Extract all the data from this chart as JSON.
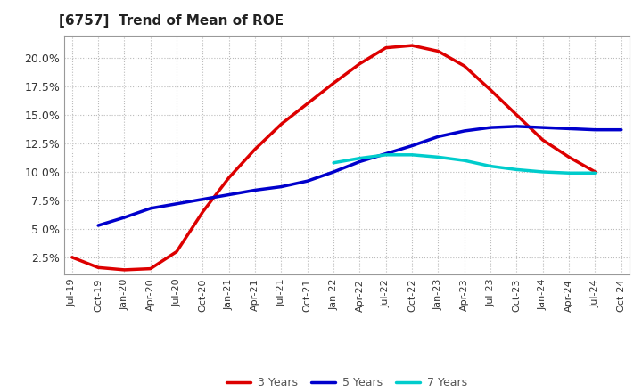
{
  "title": "[6757]  Trend of Mean of ROE",
  "title_fontsize": 11,
  "background_color": "#ffffff",
  "grid_color": "#bbbbbb",
  "x_tick_labels": [
    "Jul-19",
    "Oct-19",
    "Jan-20",
    "Apr-20",
    "Jul-20",
    "Oct-20",
    "Jan-21",
    "Apr-21",
    "Jul-21",
    "Oct-21",
    "Jan-22",
    "Apr-22",
    "Jul-22",
    "Oct-22",
    "Jan-23",
    "Apr-23",
    "Jul-23",
    "Oct-23",
    "Jan-24",
    "Apr-24",
    "Jul-24",
    "Oct-24"
  ],
  "series": {
    "3 Years": {
      "color": "#dd0000",
      "values": [
        2.5,
        1.6,
        1.4,
        1.5,
        3.0,
        6.5,
        9.5,
        12.0,
        14.2,
        16.0,
        17.8,
        19.5,
        20.9,
        21.1,
        20.6,
        19.3,
        17.2,
        15.0,
        12.8,
        11.3,
        10.0,
        null
      ]
    },
    "5 Years": {
      "color": "#0000cc",
      "values": [
        null,
        5.3,
        6.0,
        6.8,
        7.2,
        7.6,
        8.0,
        8.4,
        8.7,
        9.2,
        10.0,
        10.9,
        11.6,
        12.3,
        13.1,
        13.6,
        13.9,
        14.0,
        13.9,
        13.8,
        13.7,
        13.7
      ]
    },
    "7 Years": {
      "color": "#00cccc",
      "values": [
        null,
        null,
        null,
        null,
        null,
        null,
        null,
        null,
        null,
        null,
        10.8,
        11.2,
        11.5,
        11.5,
        11.3,
        11.0,
        10.5,
        10.2,
        10.0,
        9.9,
        9.9,
        null
      ]
    },
    "10 Years": {
      "color": "#007700",
      "values": [
        null,
        null,
        null,
        null,
        null,
        null,
        null,
        null,
        null,
        null,
        null,
        null,
        null,
        null,
        null,
        null,
        null,
        null,
        null,
        null,
        null,
        null
      ]
    }
  },
  "ylim": [
    1.0,
    22.0
  ],
  "yticks": [
    2.5,
    5.0,
    7.5,
    10.0,
    12.5,
    15.0,
    17.5,
    20.0
  ],
  "ylabel_fontsize": 9,
  "xlabel_fontsize": 8,
  "legend_fontsize": 9,
  "linewidth": 2.5
}
